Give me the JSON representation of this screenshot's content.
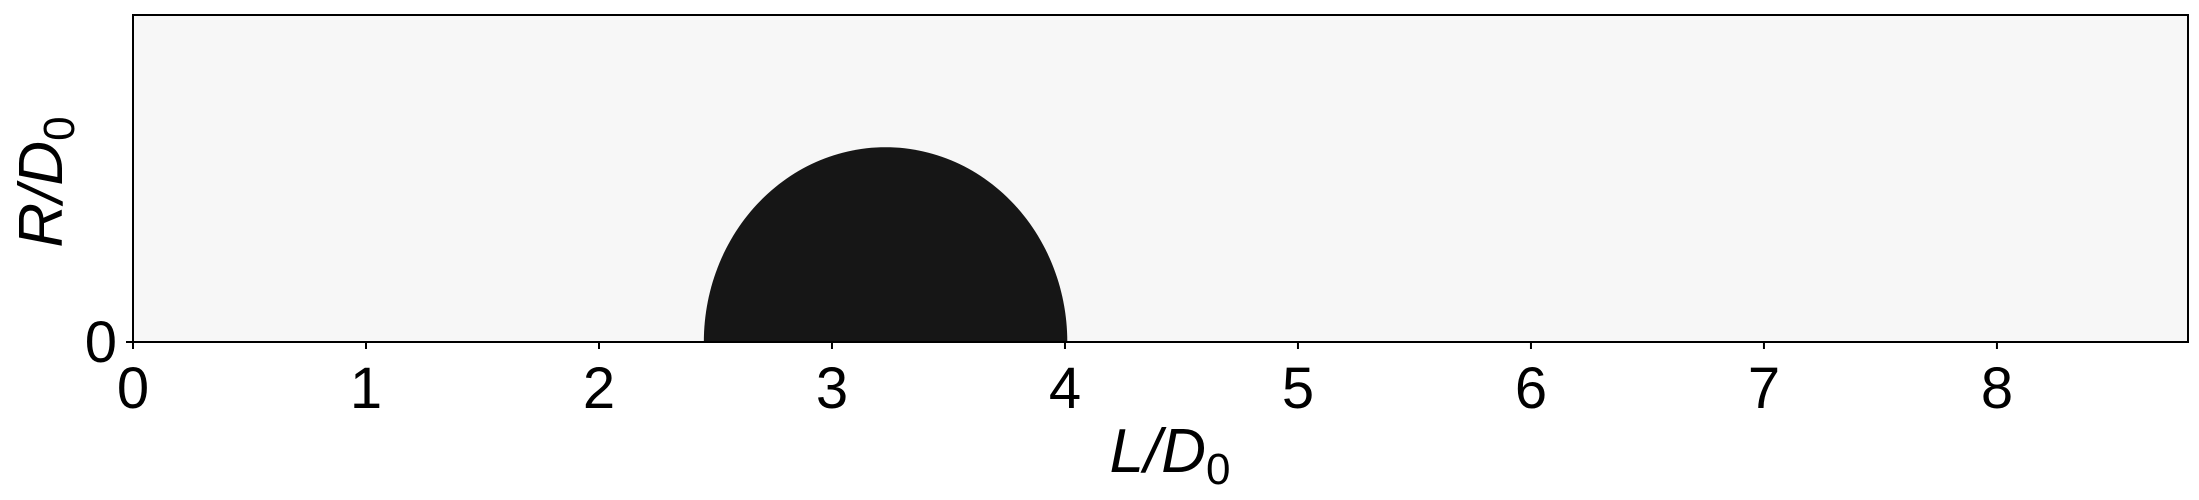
{
  "chart_data": {
    "type": "heatmap",
    "title": "",
    "xlabel": {
      "main": "L/D",
      "sub": "0"
    },
    "ylabel": {
      "main": "R/D",
      "sub": "0"
    },
    "xlim": [
      0,
      8.82
    ],
    "ylim": [
      0,
      1.41
    ],
    "x_ticks": [
      0,
      1,
      2,
      3,
      4,
      5,
      6,
      7,
      8
    ],
    "x_tick_labels": [
      "0",
      "1",
      "2",
      "3",
      "4",
      "5",
      "6",
      "7",
      "8"
    ],
    "y_ticks": [
      0
    ],
    "y_tick_labels": [
      "0"
    ],
    "grid": false,
    "background_color": "#f7f7f7",
    "fill_color": "#161616",
    "region": {
      "shape": "half-ellipse",
      "center_x": 3.23,
      "x_min": 2.45,
      "x_max": 4.01,
      "height": 0.84
    }
  }
}
